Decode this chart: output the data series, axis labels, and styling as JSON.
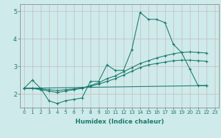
{
  "xlabel": "Humidex (Indice chaleur)",
  "background_color": "#ceeaea",
  "grid_color": "#c8b8b8",
  "line_color": "#1a7a6e",
  "xlim": [
    -0.5,
    23.5
  ],
  "ylim": [
    1.5,
    5.25
  ],
  "yticks": [
    2,
    3,
    4,
    5
  ],
  "xticks": [
    0,
    1,
    2,
    3,
    4,
    5,
    6,
    7,
    8,
    9,
    10,
    11,
    12,
    13,
    14,
    15,
    16,
    17,
    18,
    19,
    20,
    21,
    22,
    23
  ],
  "line1_x": [
    0,
    1,
    2,
    3,
    4,
    5,
    6,
    7,
    8,
    9,
    10,
    11,
    12,
    13,
    14,
    15,
    16,
    17,
    18,
    19,
    20,
    21,
    22
  ],
  "line1_y": [
    2.2,
    2.5,
    2.2,
    1.75,
    1.65,
    1.75,
    1.8,
    1.85,
    2.45,
    2.45,
    3.05,
    2.85,
    2.85,
    3.6,
    4.95,
    4.7,
    4.7,
    4.58,
    3.8,
    3.5,
    2.9,
    2.3,
    2.3
  ],
  "line2_x": [
    0,
    1,
    2,
    3,
    4,
    5,
    6,
    7,
    8,
    9,
    10,
    11,
    12,
    13,
    14,
    15,
    16,
    17,
    18,
    19,
    20,
    21,
    22
  ],
  "line2_y": [
    2.2,
    2.2,
    2.15,
    2.1,
    2.05,
    2.1,
    2.15,
    2.2,
    2.3,
    2.4,
    2.55,
    2.65,
    2.8,
    2.95,
    3.1,
    3.2,
    3.3,
    3.38,
    3.45,
    3.5,
    3.52,
    3.5,
    3.48
  ],
  "line3_x": [
    0,
    1,
    2,
    3,
    4,
    5,
    6,
    7,
    8,
    9,
    10,
    11,
    12,
    13,
    14,
    15,
    16,
    17,
    18,
    19,
    20,
    21,
    22
  ],
  "line3_y": [
    2.2,
    2.2,
    2.18,
    2.15,
    2.12,
    2.15,
    2.18,
    2.22,
    2.28,
    2.35,
    2.45,
    2.55,
    2.68,
    2.82,
    2.95,
    3.05,
    3.1,
    3.15,
    3.2,
    3.22,
    3.22,
    3.2,
    3.18
  ],
  "line4_x": [
    0,
    22
  ],
  "line4_y": [
    2.2,
    2.3
  ]
}
